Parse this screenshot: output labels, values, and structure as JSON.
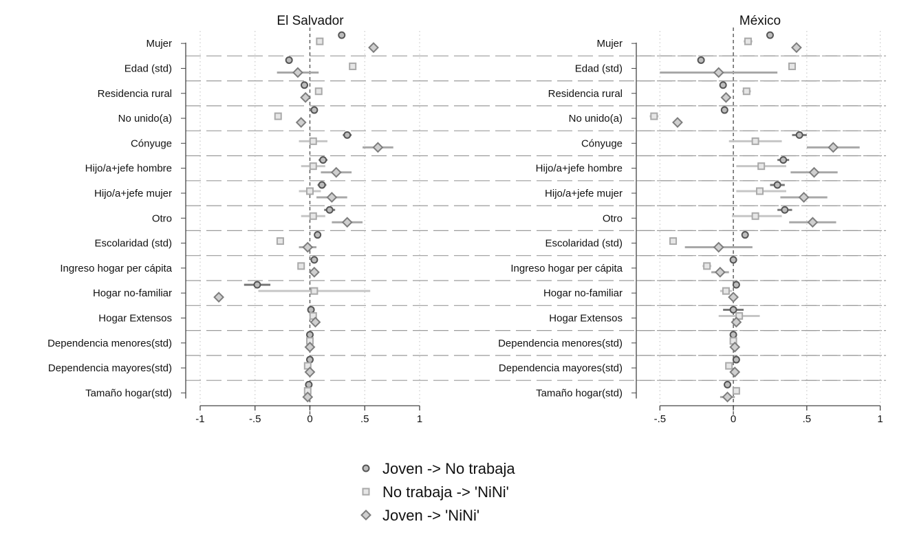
{
  "chart_data": [
    {
      "type": "coefficient-plot",
      "title": "El Salvador",
      "categories": [
        "Mujer",
        "Edad (std)",
        "Residencia rural",
        "No unido(a)",
        "Cónyuge",
        "Hijo/a+jefe hombre",
        "Hijo/a+jefe mujer",
        "Otro",
        "Escolaridad (std)",
        "Ingreso hogar per cápita",
        "Hogar no-familiar",
        "Hogar Extensos",
        "Dependencia menores(std)",
        "Dependencia mayores(std)",
        "Tamaño hogar(std)"
      ],
      "xlim": [
        -1.05,
        1.05
      ],
      "xticks": [
        -1,
        -0.5,
        0,
        0.5,
        1
      ],
      "xtick_labels": [
        "-1",
        "-.5",
        "0",
        ".5",
        "1"
      ],
      "series": [
        {
          "name": "Joven -> No trabaja",
          "marker": "circle",
          "values": [
            0.29,
            -0.19,
            -0.05,
            0.04,
            0.34,
            0.12,
            0.11,
            0.18,
            0.07,
            0.04,
            -0.48,
            0.01,
            0.0,
            0.0,
            -0.01
          ],
          "ci_low": [
            0.27,
            -0.2,
            -0.06,
            0.03,
            0.3,
            0.08,
            0.07,
            0.13,
            0.06,
            0.03,
            -0.6,
            0.0,
            -0.01,
            -0.01,
            -0.02
          ],
          "ci_high": [
            0.31,
            -0.18,
            -0.04,
            0.05,
            0.38,
            0.16,
            0.15,
            0.23,
            0.08,
            0.05,
            -0.36,
            0.02,
            0.01,
            0.01,
            0.0
          ]
        },
        {
          "name": "No trabaja -> 'NiNi'",
          "marker": "square",
          "values": [
            0.09,
            0.39,
            0.08,
            -0.29,
            0.03,
            0.03,
            0.0,
            0.03,
            -0.27,
            -0.08,
            0.04,
            0.03,
            0.0,
            -0.02,
            -0.02
          ],
          "ci_low": [
            0.07,
            0.37,
            0.06,
            -0.31,
            -0.1,
            -0.08,
            -0.1,
            -0.08,
            -0.29,
            -0.1,
            -0.47,
            0.01,
            -0.02,
            -0.04,
            -0.04
          ],
          "ci_high": [
            0.11,
            0.41,
            0.1,
            -0.27,
            0.16,
            0.14,
            0.1,
            0.14,
            -0.25,
            -0.06,
            0.55,
            0.05,
            0.02,
            0.0,
            0.0
          ]
        },
        {
          "name": "Joven -> 'NiNi'",
          "marker": "diamond",
          "values": [
            0.58,
            -0.11,
            -0.04,
            -0.08,
            0.62,
            0.24,
            0.2,
            0.34,
            -0.02,
            0.04,
            -0.83,
            0.05,
            0.0,
            0.0,
            -0.02
          ],
          "ci_low": [
            0.56,
            -0.3,
            -0.06,
            -0.1,
            0.48,
            0.1,
            0.06,
            0.2,
            -0.1,
            0.0,
            -0.85,
            0.03,
            -0.02,
            -0.02,
            -0.04
          ],
          "ci_high": [
            0.6,
            0.08,
            -0.02,
            -0.06,
            0.76,
            0.38,
            0.34,
            0.48,
            0.06,
            0.08,
            -0.81,
            0.07,
            0.02,
            0.02,
            0.0
          ]
        }
      ]
    },
    {
      "type": "coefficient-plot",
      "title": "México",
      "categories": [
        "Mujer",
        "Edad (std)",
        "Residencia rural",
        "No unido(a)",
        "Cónyuge",
        "Hijo/a+jefe hombre",
        "Hijo/a+jefe mujer",
        "Otro",
        "Escolaridad (std)",
        "Ingreso hogar per cápita",
        "Hogar no-familiar",
        "Hogar Extensos",
        "Dependencia menores(std)",
        "Dependencia mayores(std)",
        "Tamaño hogar(std)"
      ],
      "xlim": [
        -0.6,
        1.03
      ],
      "xticks": [
        -0.5,
        0,
        0.5,
        1
      ],
      "xtick_labels": [
        "-.5",
        "0",
        ".5",
        "1"
      ],
      "series": [
        {
          "name": "Joven -> No trabaja",
          "marker": "circle",
          "values": [
            0.25,
            -0.22,
            -0.07,
            -0.06,
            0.45,
            0.34,
            0.3,
            0.35,
            0.08,
            0.0,
            0.02,
            0.0,
            0.0,
            0.02,
            -0.04
          ],
          "ci_low": [
            0.24,
            -0.23,
            -0.08,
            -0.07,
            0.4,
            0.3,
            0.25,
            0.3,
            0.07,
            -0.01,
            0.0,
            -0.07,
            -0.01,
            0.0,
            -0.05
          ],
          "ci_high": [
            0.26,
            -0.21,
            -0.06,
            -0.05,
            0.5,
            0.38,
            0.35,
            0.4,
            0.09,
            0.01,
            0.04,
            0.07,
            0.01,
            0.04,
            -0.03
          ]
        },
        {
          "name": "No trabaja -> 'NiNi'",
          "marker": "square",
          "values": [
            0.1,
            0.4,
            0.09,
            -0.54,
            0.15,
            0.19,
            0.18,
            0.15,
            -0.41,
            -0.18,
            -0.05,
            0.04,
            0.0,
            -0.03,
            0.02
          ],
          "ci_low": [
            0.07,
            0.38,
            0.06,
            -0.57,
            -0.03,
            0.02,
            0.02,
            -0.01,
            -0.43,
            -0.21,
            -0.09,
            -0.1,
            -0.01,
            -0.05,
            0.0
          ],
          "ci_high": [
            0.13,
            0.42,
            0.12,
            -0.51,
            0.33,
            0.36,
            0.36,
            0.33,
            -0.39,
            -0.15,
            -0.01,
            0.18,
            0.01,
            -0.01,
            0.04
          ]
        },
        {
          "name": "Joven -> 'NiNi'",
          "marker": "diamond",
          "values": [
            0.43,
            -0.1,
            -0.05,
            -0.38,
            0.68,
            0.55,
            0.48,
            0.54,
            -0.1,
            -0.09,
            0.0,
            0.02,
            0.01,
            0.01,
            -0.04
          ],
          "ci_low": [
            0.41,
            -0.5,
            -0.08,
            -0.4,
            0.5,
            0.39,
            0.32,
            0.38,
            -0.33,
            -0.15,
            -0.02,
            0.0,
            -0.01,
            -0.01,
            -0.09
          ],
          "ci_high": [
            0.45,
            0.3,
            -0.02,
            -0.36,
            0.86,
            0.71,
            0.64,
            0.7,
            0.13,
            -0.03,
            0.02,
            0.04,
            0.03,
            0.03,
            0.01
          ]
        }
      ]
    }
  ],
  "legend": {
    "items": [
      {
        "label": "Joven -> No trabaja",
        "marker": "circle"
      },
      {
        "label": "No trabaja -> 'NiNi'",
        "marker": "square"
      },
      {
        "label": "Joven -> 'NiNi'",
        "marker": "diamond"
      }
    ],
    "placement": "bottom-center"
  },
  "colors": {
    "circle": "#555555",
    "square": "#a9a9a9",
    "diamond": "#7d7d7d",
    "axis": "#444444",
    "row_separator": "#9a9a9a",
    "grid": "#c8c8c8"
  }
}
